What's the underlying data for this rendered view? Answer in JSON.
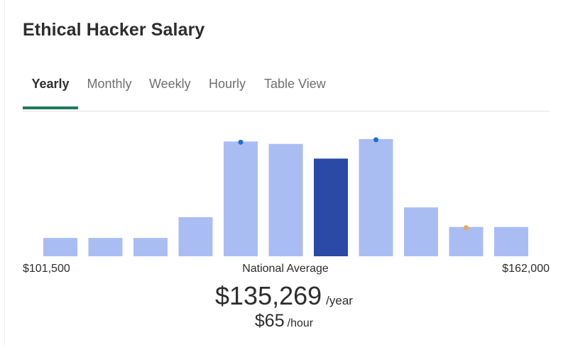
{
  "title": "Ethical Hacker Salary",
  "tabs": [
    {
      "label": "Yearly",
      "active": true
    },
    {
      "label": "Monthly",
      "active": false
    },
    {
      "label": "Weekly",
      "active": false
    },
    {
      "label": "Hourly",
      "active": false
    },
    {
      "label": "Table View",
      "active": false
    }
  ],
  "colors": {
    "bar": "#aabdf3",
    "highlight_bar": "#2a4aa6",
    "blue_marker": "#1a6ed8",
    "orange_marker": "#f2a65a",
    "active_tab": "#1f7a5a"
  },
  "range": {
    "min_label": "$101,500",
    "max_label": "$162,000"
  },
  "average": {
    "label": "National Average",
    "yearly_amount": "$135,269",
    "yearly_unit": "/year",
    "hourly_amount": "$65",
    "hourly_unit": "/hour"
  },
  "chart_data": {
    "type": "bar",
    "title": "Ethical Hacker Salary",
    "xlabel": "",
    "ylabel": "",
    "x_range": [
      "$101,500",
      "$162,000"
    ],
    "values": [
      15,
      15,
      15,
      32,
      94,
      92,
      80,
      96,
      40,
      24,
      24
    ],
    "ylim": [
      0,
      100
    ],
    "highlight_index": 6,
    "markers": [
      {
        "bar_index": 4,
        "color": "blue"
      },
      {
        "bar_index": 7,
        "color": "blue"
      },
      {
        "bar_index": 9,
        "color": "orange"
      }
    ],
    "grid": false
  }
}
